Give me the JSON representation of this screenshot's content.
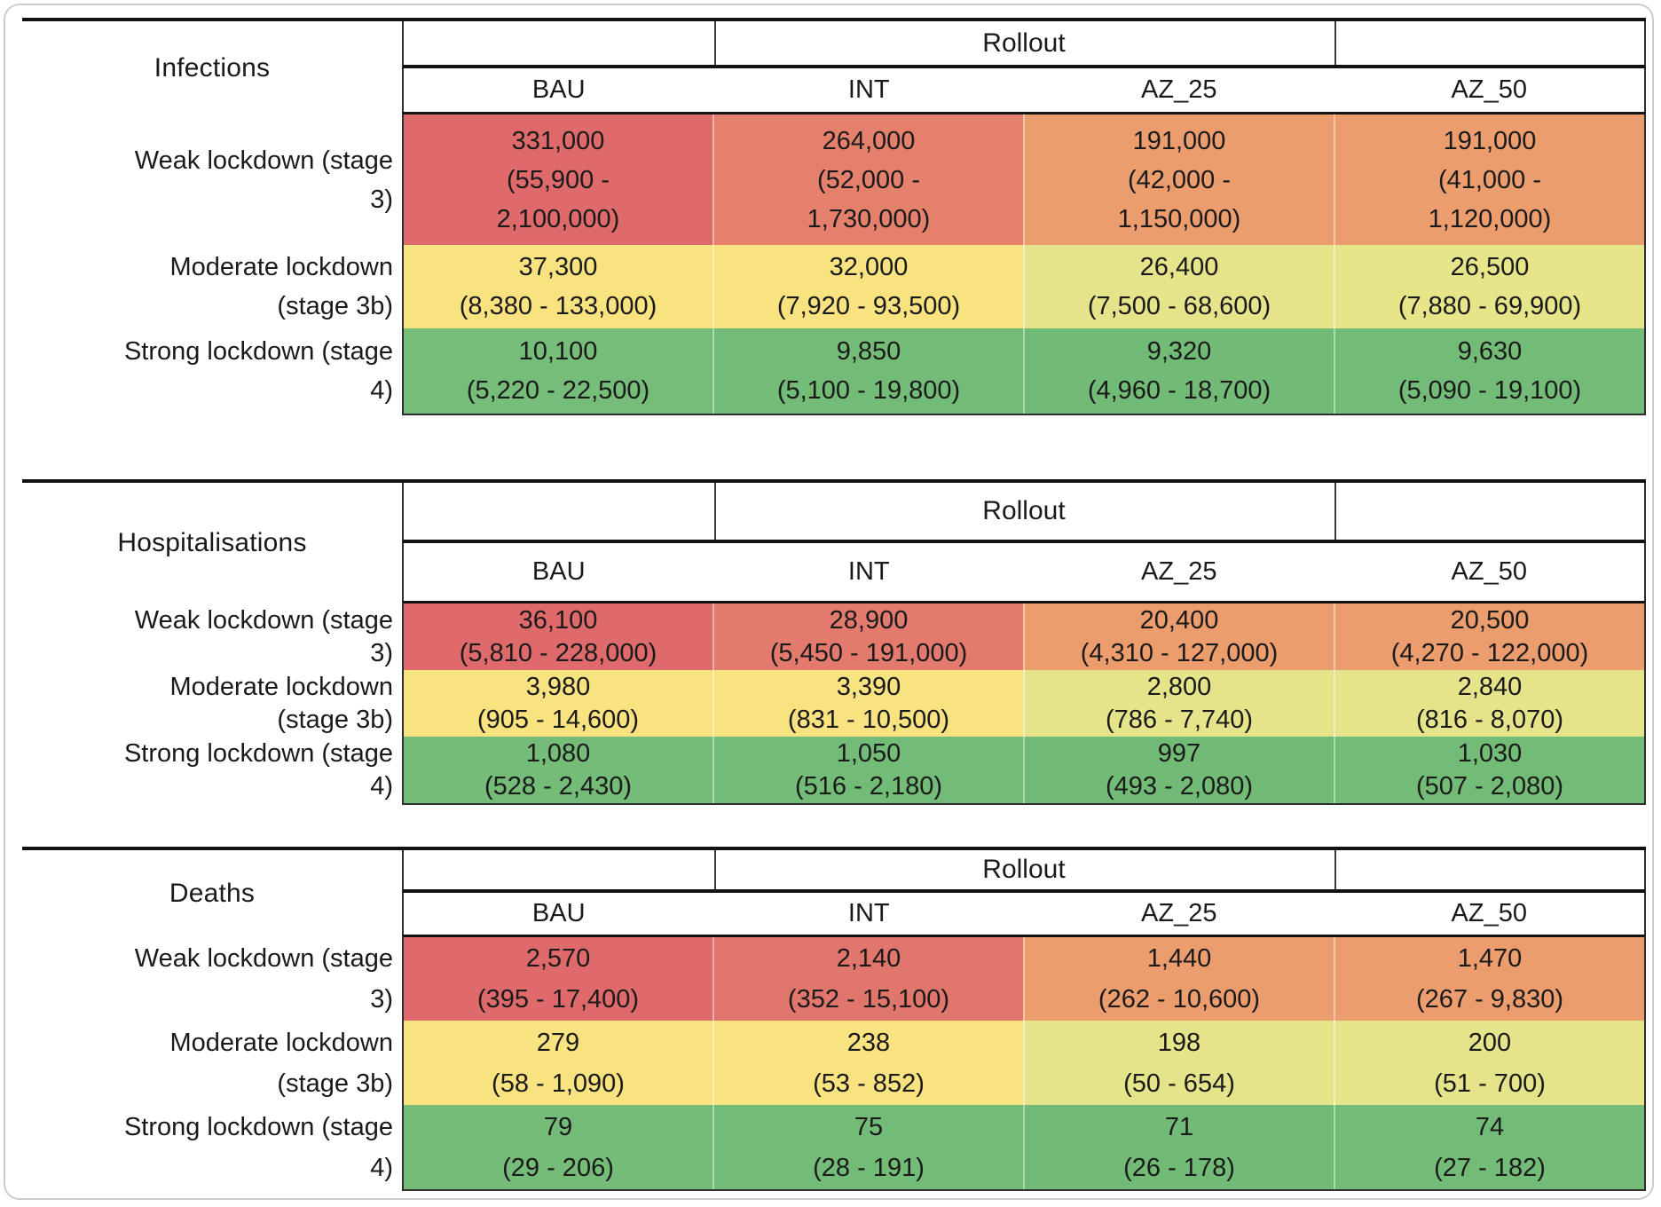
{
  "figure": {
    "tables": [
      {
        "section_label": "Infections",
        "group_header": "Rollout",
        "columns": [
          "BAU",
          "INT",
          "AZ_25",
          "AZ_50"
        ],
        "rows": [
          {
            "label_lines": [
              "Weak lockdown (stage",
              "3)"
            ],
            "cells": [
              {
                "value": "331,000",
                "ci_lines": [
                  "(55,900 -",
                  "2,100,000)"
                ],
                "color": "#df6a6b"
              },
              {
                "value": "264,000",
                "ci_lines": [
                  "(52,000 -",
                  "1,730,000)"
                ],
                "color": "#e5806d"
              },
              {
                "value": "191,000",
                "ci_lines": [
                  "(42,000 -",
                  "1,150,000)"
                ],
                "color": "#ec9d6e"
              },
              {
                "value": "191,000",
                "ci_lines": [
                  "(41,000 -",
                  "1,120,000)"
                ],
                "color": "#ec9d6e"
              }
            ]
          },
          {
            "label_lines": [
              "Moderate lockdown",
              "(stage 3b)"
            ],
            "cells": [
              {
                "value": "37,300",
                "ci_lines": [
                  "(8,380 - 133,000)"
                ],
                "color": "#f9e380"
              },
              {
                "value": "32,000",
                "ci_lines": [
                  "(7,920 - 93,500)"
                ],
                "color": "#f9e380"
              },
              {
                "value": "26,400",
                "ci_lines": [
                  "(7,500 - 68,600)"
                ],
                "color": "#e6e48a"
              },
              {
                "value": "26,500",
                "ci_lines": [
                  "(7,880 - 69,900)"
                ],
                "color": "#e7e58a"
              }
            ]
          },
          {
            "label_lines": [
              "Strong lockdown (stage",
              "4)"
            ],
            "cells": [
              {
                "value": "10,100",
                "ci_lines": [
                  "(5,220 - 22,500)"
                ],
                "color": "#76bd79"
              },
              {
                "value": "9,850",
                "ci_lines": [
                  "(5,100 - 19,800)"
                ],
                "color": "#73bc77"
              },
              {
                "value": "9,320",
                "ci_lines": [
                  "(4,960 - 18,700)"
                ],
                "color": "#71bb76"
              },
              {
                "value": "9,630",
                "ci_lines": [
                  "(5,090 - 19,100)"
                ],
                "color": "#73bc77"
              }
            ]
          }
        ]
      },
      {
        "section_label": "Hospitalisations",
        "group_header": "Rollout",
        "columns": [
          "BAU",
          "INT",
          "AZ_25",
          "AZ_50"
        ],
        "rows": [
          {
            "label_lines": [
              "Weak lockdown (stage",
              "3)"
            ],
            "cells": [
              {
                "value": "36,100",
                "ci_lines": [
                  "(5,810 - 228,000)"
                ],
                "color": "#df6a6b"
              },
              {
                "value": "28,900",
                "ci_lines": [
                  "(5,450 - 191,000)"
                ],
                "color": "#e27a6e"
              },
              {
                "value": "20,400",
                "ci_lines": [
                  "(4,310 - 127,000)"
                ],
                "color": "#ec9d6e"
              },
              {
                "value": "20,500",
                "ci_lines": [
                  "(4,270 - 122,000)"
                ],
                "color": "#ec9d6e"
              }
            ]
          },
          {
            "label_lines": [
              "Moderate lockdown",
              "(stage 3b)"
            ],
            "cells": [
              {
                "value": "3,980",
                "ci_lines": [
                  "(905 - 14,600)"
                ],
                "color": "#f9e380"
              },
              {
                "value": "3,390",
                "ci_lines": [
                  "(831 - 10,500)"
                ],
                "color": "#f9e380"
              },
              {
                "value": "2,800",
                "ci_lines": [
                  "(786 - 7,740)"
                ],
                "color": "#e6e48a"
              },
              {
                "value": "2,840",
                "ci_lines": [
                  "(816 - 8,070)"
                ],
                "color": "#e6e48a"
              }
            ]
          },
          {
            "label_lines": [
              "Strong lockdown (stage",
              "4)"
            ],
            "cells": [
              {
                "value": "1,080",
                "ci_lines": [
                  "(528 - 2,430)"
                ],
                "color": "#74bc78"
              },
              {
                "value": "1,050",
                "ci_lines": [
                  "(516 - 2,180)"
                ],
                "color": "#73bc77"
              },
              {
                "value": "997",
                "ci_lines": [
                  "(493 - 2,080)"
                ],
                "color": "#72bb76"
              },
              {
                "value": "1,030",
                "ci_lines": [
                  "(507 - 2,080)"
                ],
                "color": "#73bc77"
              }
            ]
          }
        ]
      },
      {
        "section_label": "Deaths",
        "group_header": "Rollout",
        "columns": [
          "BAU",
          "INT",
          "AZ_25",
          "AZ_50"
        ],
        "rows": [
          {
            "label_lines": [
              "Weak lockdown (stage",
              "3)"
            ],
            "cells": [
              {
                "value": "2,570",
                "ci_lines": [
                  "(395 - 17,400)"
                ],
                "color": "#df6a6b"
              },
              {
                "value": "2,140",
                "ci_lines": [
                  "(352 - 15,100)"
                ],
                "color": "#e1766d"
              },
              {
                "value": "1,440",
                "ci_lines": [
                  "(262 - 10,600)"
                ],
                "color": "#ec9d6e"
              },
              {
                "value": "1,470",
                "ci_lines": [
                  "(267 - 9,830)"
                ],
                "color": "#ec9d6e"
              }
            ]
          },
          {
            "label_lines": [
              "Moderate lockdown",
              "(stage 3b)"
            ],
            "cells": [
              {
                "value": "279",
                "ci_lines": [
                  "(58 - 1,090)"
                ],
                "color": "#f9e380"
              },
              {
                "value": "238",
                "ci_lines": [
                  "(53 - 852)"
                ],
                "color": "#f9e380"
              },
              {
                "value": "198",
                "ci_lines": [
                  "(50 - 654)"
                ],
                "color": "#e6e48a"
              },
              {
                "value": "200",
                "ci_lines": [
                  "(51 - 700)"
                ],
                "color": "#e6e48a"
              }
            ]
          },
          {
            "label_lines": [
              "Strong lockdown (stage",
              "4)"
            ],
            "cells": [
              {
                "value": "79",
                "ci_lines": [
                  "(29 - 206)"
                ],
                "color": "#74bc78"
              },
              {
                "value": "75",
                "ci_lines": [
                  "(28 - 191)"
                ],
                "color": "#73bc77"
              },
              {
                "value": "71",
                "ci_lines": [
                  "(26 - 178)"
                ],
                "color": "#72bb76"
              },
              {
                "value": "74",
                "ci_lines": [
                  "(27 - 182)"
                ],
                "color": "#73bc77"
              }
            ]
          }
        ]
      }
    ]
  },
  "chart_data": [
    {
      "type": "table",
      "title": "Infections",
      "group_header": "Rollout",
      "columns": [
        "BAU",
        "INT",
        "AZ_25",
        "AZ_50"
      ],
      "row_labels": [
        "Weak lockdown (stage 3)",
        "Moderate lockdown (stage 3b)",
        "Strong lockdown (stage 4)"
      ],
      "values": [
        [
          331000,
          264000,
          191000,
          191000
        ],
        [
          37300,
          32000,
          26400,
          26500
        ],
        [
          10100,
          9850,
          9320,
          9630
        ]
      ],
      "intervals": [
        [
          [
            55900,
            2100000
          ],
          [
            52000,
            1730000
          ],
          [
            42000,
            1150000
          ],
          [
            41000,
            1120000
          ]
        ],
        [
          [
            8380,
            133000
          ],
          [
            7920,
            93500
          ],
          [
            7500,
            68600
          ],
          [
            7880,
            69900
          ]
        ],
        [
          [
            5220,
            22500
          ],
          [
            5100,
            19800
          ],
          [
            4960,
            18700
          ],
          [
            5090,
            19100
          ]
        ]
      ],
      "color_scale": "red-yellow-green heatmap by value"
    },
    {
      "type": "table",
      "title": "Hospitalisations",
      "group_header": "Rollout",
      "columns": [
        "BAU",
        "INT",
        "AZ_25",
        "AZ_50"
      ],
      "row_labels": [
        "Weak lockdown (stage 3)",
        "Moderate lockdown (stage 3b)",
        "Strong lockdown (stage 4)"
      ],
      "values": [
        [
          36100,
          28900,
          20400,
          20500
        ],
        [
          3980,
          3390,
          2800,
          2840
        ],
        [
          1080,
          1050,
          997,
          1030
        ]
      ],
      "intervals": [
        [
          [
            5810,
            228000
          ],
          [
            5450,
            191000
          ],
          [
            4310,
            127000
          ],
          [
            4270,
            122000
          ]
        ],
        [
          [
            905,
            14600
          ],
          [
            831,
            10500
          ],
          [
            786,
            7740
          ],
          [
            816,
            8070
          ]
        ],
        [
          [
            528,
            2430
          ],
          [
            516,
            2180
          ],
          [
            493,
            2080
          ],
          [
            507,
            2080
          ]
        ]
      ],
      "color_scale": "red-yellow-green heatmap by value"
    },
    {
      "type": "table",
      "title": "Deaths",
      "group_header": "Rollout",
      "columns": [
        "BAU",
        "INT",
        "AZ_25",
        "AZ_50"
      ],
      "row_labels": [
        "Weak lockdown (stage 3)",
        "Moderate lockdown (stage 3b)",
        "Strong lockdown (stage 4)"
      ],
      "values": [
        [
          2570,
          2140,
          1440,
          1470
        ],
        [
          279,
          238,
          198,
          200
        ],
        [
          79,
          75,
          71,
          74
        ]
      ],
      "intervals": [
        [
          [
            395,
            17400
          ],
          [
            352,
            15100
          ],
          [
            262,
            10600
          ],
          [
            267,
            9830
          ]
        ],
        [
          [
            58,
            1090
          ],
          [
            53,
            852
          ],
          [
            50,
            654
          ],
          [
            51,
            700
          ]
        ],
        [
          [
            29,
            206
          ],
          [
            28,
            191
          ],
          [
            26,
            178
          ],
          [
            27,
            182
          ]
        ]
      ],
      "color_scale": "red-yellow-green heatmap by value"
    }
  ]
}
